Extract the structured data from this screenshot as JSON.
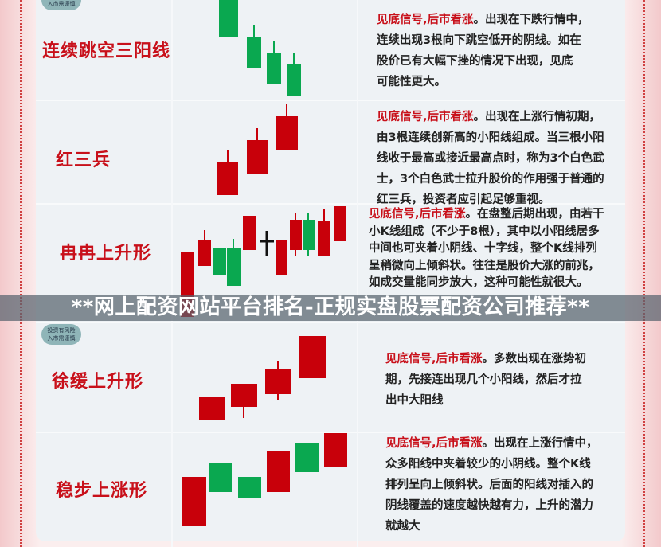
{
  "banner": {
    "text": "**网上配资网站平台排名-正规实盘股票配资公司推荐**"
  },
  "badge": {
    "line1": "投资有风险",
    "line2": "入市需谨慎"
  },
  "colors": {
    "bullish": "#c8000a",
    "bearish": "#0aa850",
    "label": "#c8101a"
  },
  "sections": [
    {
      "label": "连续跳空三阳线",
      "highlight": "见底信号,后市看涨",
      "lines": [
        "。出现在下跌行情中，",
        "连续出现3根向下跳空低开的阴线。如在",
        "股价已有大幅下挫的情况下出现，见底",
        "可能性更大。"
      ]
    },
    {
      "label": "红三兵",
      "highlight": "见底信号,后市看涨",
      "lines": [
        "。出现在上涨行情初期，",
        "由3根连续创新高的小阳线组成。当三根小阳",
        "线收于最高或接近最高点时，称为3个白色武",
        "士，3个白色武士拉升股价的作用强于普通的",
        "红三兵，投资者应引起足够重视。"
      ]
    },
    {
      "label": "冉冉上升形",
      "highlight": "见底信号,后市看涨",
      "lines": [
        "。在盘整后期出现，由若干",
        "小K线组成（不少于8根），其中以小阳线居多",
        "中间也可夹着小阴线、十字线，整个K线排列",
        "呈稍微向上倾斜状。往往是股价大涨的前兆，",
        "如成交量能同步放大，这种可能性就很大。"
      ]
    },
    {
      "label": "徐缓上升形",
      "highlight": "见底信号,后市看涨",
      "lines": [
        "。多数出现在涨势初",
        "期，先接连出现几个小阳线，然后才拉",
        "出中大阳线"
      ]
    },
    {
      "label": "稳步上涨形",
      "highlight": "见底信号,后市看涨",
      "lines": [
        "。出现在上涨行情中，",
        "众多阳线中夹着较少的小阴线。整个K线",
        "排列呈向上倾斜状。后面的阳线对插入的",
        "阴线覆盖的速度越快越有力，上升的潜力",
        "就越大"
      ]
    }
  ]
}
